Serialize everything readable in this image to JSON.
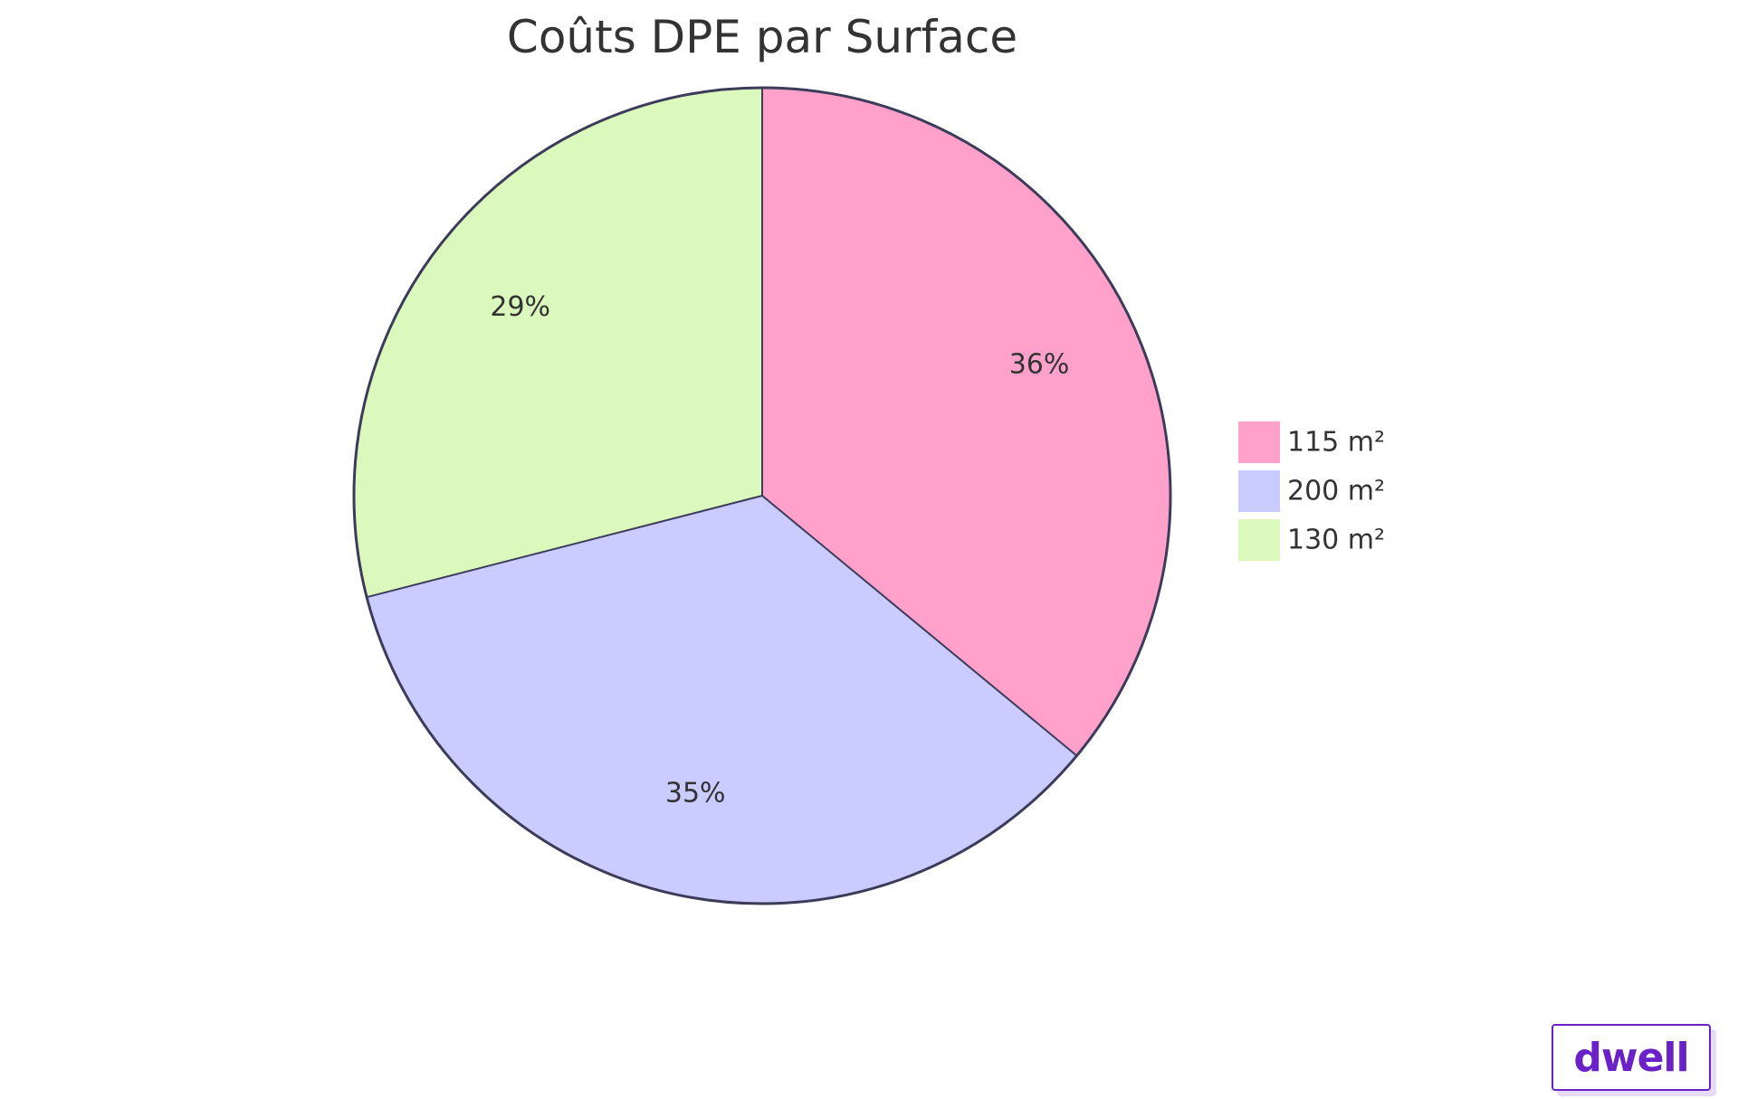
{
  "chart_data": {
    "type": "pie",
    "title": "Coûts DPE par Surface",
    "categories": [
      "115 m²",
      "200 m²",
      "130 m²"
    ],
    "values": [
      36,
      35,
      29
    ],
    "labels": [
      "36%",
      "35%",
      "29%"
    ],
    "colors": [
      "#ffa1cb",
      "#cacbff",
      "#dbf9bc"
    ],
    "stroke_color": "#3c3c5a",
    "legend": "right"
  },
  "brand": {
    "name": "dwell",
    "color": "#6b21c8"
  }
}
